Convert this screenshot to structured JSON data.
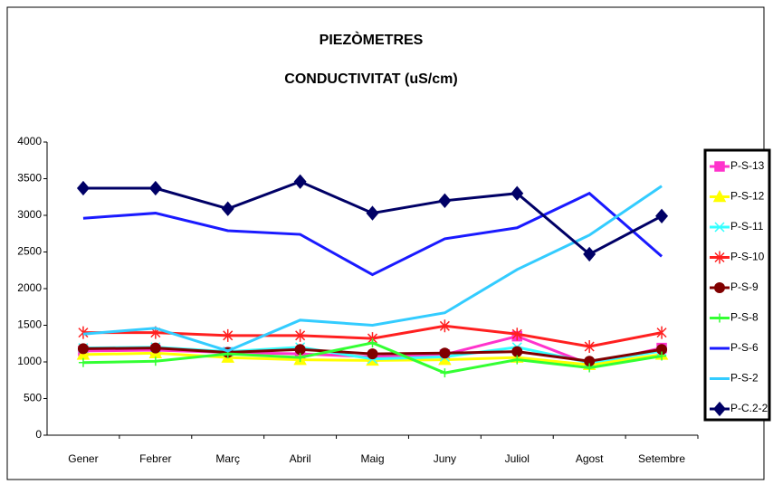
{
  "chart_data": {
    "type": "line",
    "title": "PIEZÒMETRES",
    "subtitle": "CONDUCTIVITAT (uS/cm)",
    "categories": [
      "Gener",
      "Febrer",
      "Març",
      "Abril",
      "Maig",
      "Juny",
      "Juliol",
      "Agost",
      "Setembre"
    ],
    "ylim": [
      0,
      4000
    ],
    "yticks": [
      0,
      500,
      1000,
      1500,
      2000,
      2500,
      3000,
      3500,
      4000
    ],
    "grid": false,
    "legend": "right",
    "series": [
      {
        "name": "P-S-13",
        "color": "#ff33cc",
        "marker": "square",
        "values": [
          1150,
          1160,
          1130,
          1110,
          1070,
          1100,
          1350,
          970,
          1190
        ]
      },
      {
        "name": "P-S-12",
        "color": "#ffff00",
        "marker": "triangle",
        "values": [
          1100,
          1120,
          1060,
          1030,
          1020,
          1030,
          1060,
          960,
          1100
        ]
      },
      {
        "name": "P-S-11",
        "color": "#33ffff",
        "marker": "x",
        "values": [
          1190,
          1200,
          1140,
          1200,
          1040,
          1070,
          1200,
          990,
          1150
        ]
      },
      {
        "name": "P-S-10",
        "color": "#ff2020",
        "marker": "asterisk",
        "values": [
          1400,
          1400,
          1360,
          1360,
          1320,
          1490,
          1380,
          1210,
          1400
        ]
      },
      {
        "name": "P-S-9",
        "color": "#800000",
        "marker": "circle",
        "values": [
          1180,
          1190,
          1130,
          1170,
          1110,
          1120,
          1140,
          1010,
          1170
        ]
      },
      {
        "name": "P-S-8",
        "color": "#33ff33",
        "marker": "plus",
        "values": [
          990,
          1010,
          1110,
          1060,
          1260,
          850,
          1030,
          920,
          1080
        ]
      },
      {
        "name": "P-S-6",
        "color": "#1a1aff",
        "marker": "none",
        "values": [
          2960,
          3030,
          2790,
          2740,
          2190,
          2680,
          2830,
          3300,
          2440
        ]
      },
      {
        "name": "P-S-2",
        "color": "#33ccff",
        "marker": "none",
        "values": [
          1380,
          1460,
          1150,
          1570,
          1500,
          1670,
          2260,
          2730,
          3400
        ]
      },
      {
        "name": "P-C.2-2",
        "color": "#000066",
        "marker": "diamond",
        "values": [
          3370,
          3370,
          3090,
          3460,
          3030,
          3200,
          3300,
          2470,
          2990
        ]
      }
    ]
  }
}
